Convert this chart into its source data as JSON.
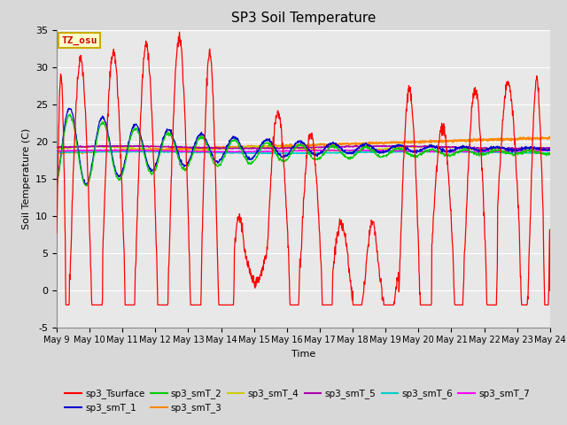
{
  "title": "SP3 Soil Temperature",
  "ylabel": "Soil Temperature (C)",
  "xlabel": "Time",
  "xlim_days": [
    9,
    24
  ],
  "ylim": [
    -5,
    35
  ],
  "yticks": [
    -5,
    0,
    5,
    10,
    15,
    20,
    25,
    30,
    35
  ],
  "annotation_text": "TZ_osu",
  "annotation_color": "#cc0000",
  "annotation_bg": "#ffffcc",
  "annotation_border": "#ccaa00",
  "series_colors": {
    "sp3_Tsurface": "#ff0000",
    "sp3_smT_1": "#0000cc",
    "sp3_smT_2": "#00cc00",
    "sp3_smT_3": "#ff8800",
    "sp3_smT_4": "#cccc00",
    "sp3_smT_5": "#aa00aa",
    "sp3_smT_6": "#00cccc",
    "sp3_smT_7": "#ff00ff"
  },
  "bg_color": "#e8e8e8",
  "grid_color": "#ffffff"
}
